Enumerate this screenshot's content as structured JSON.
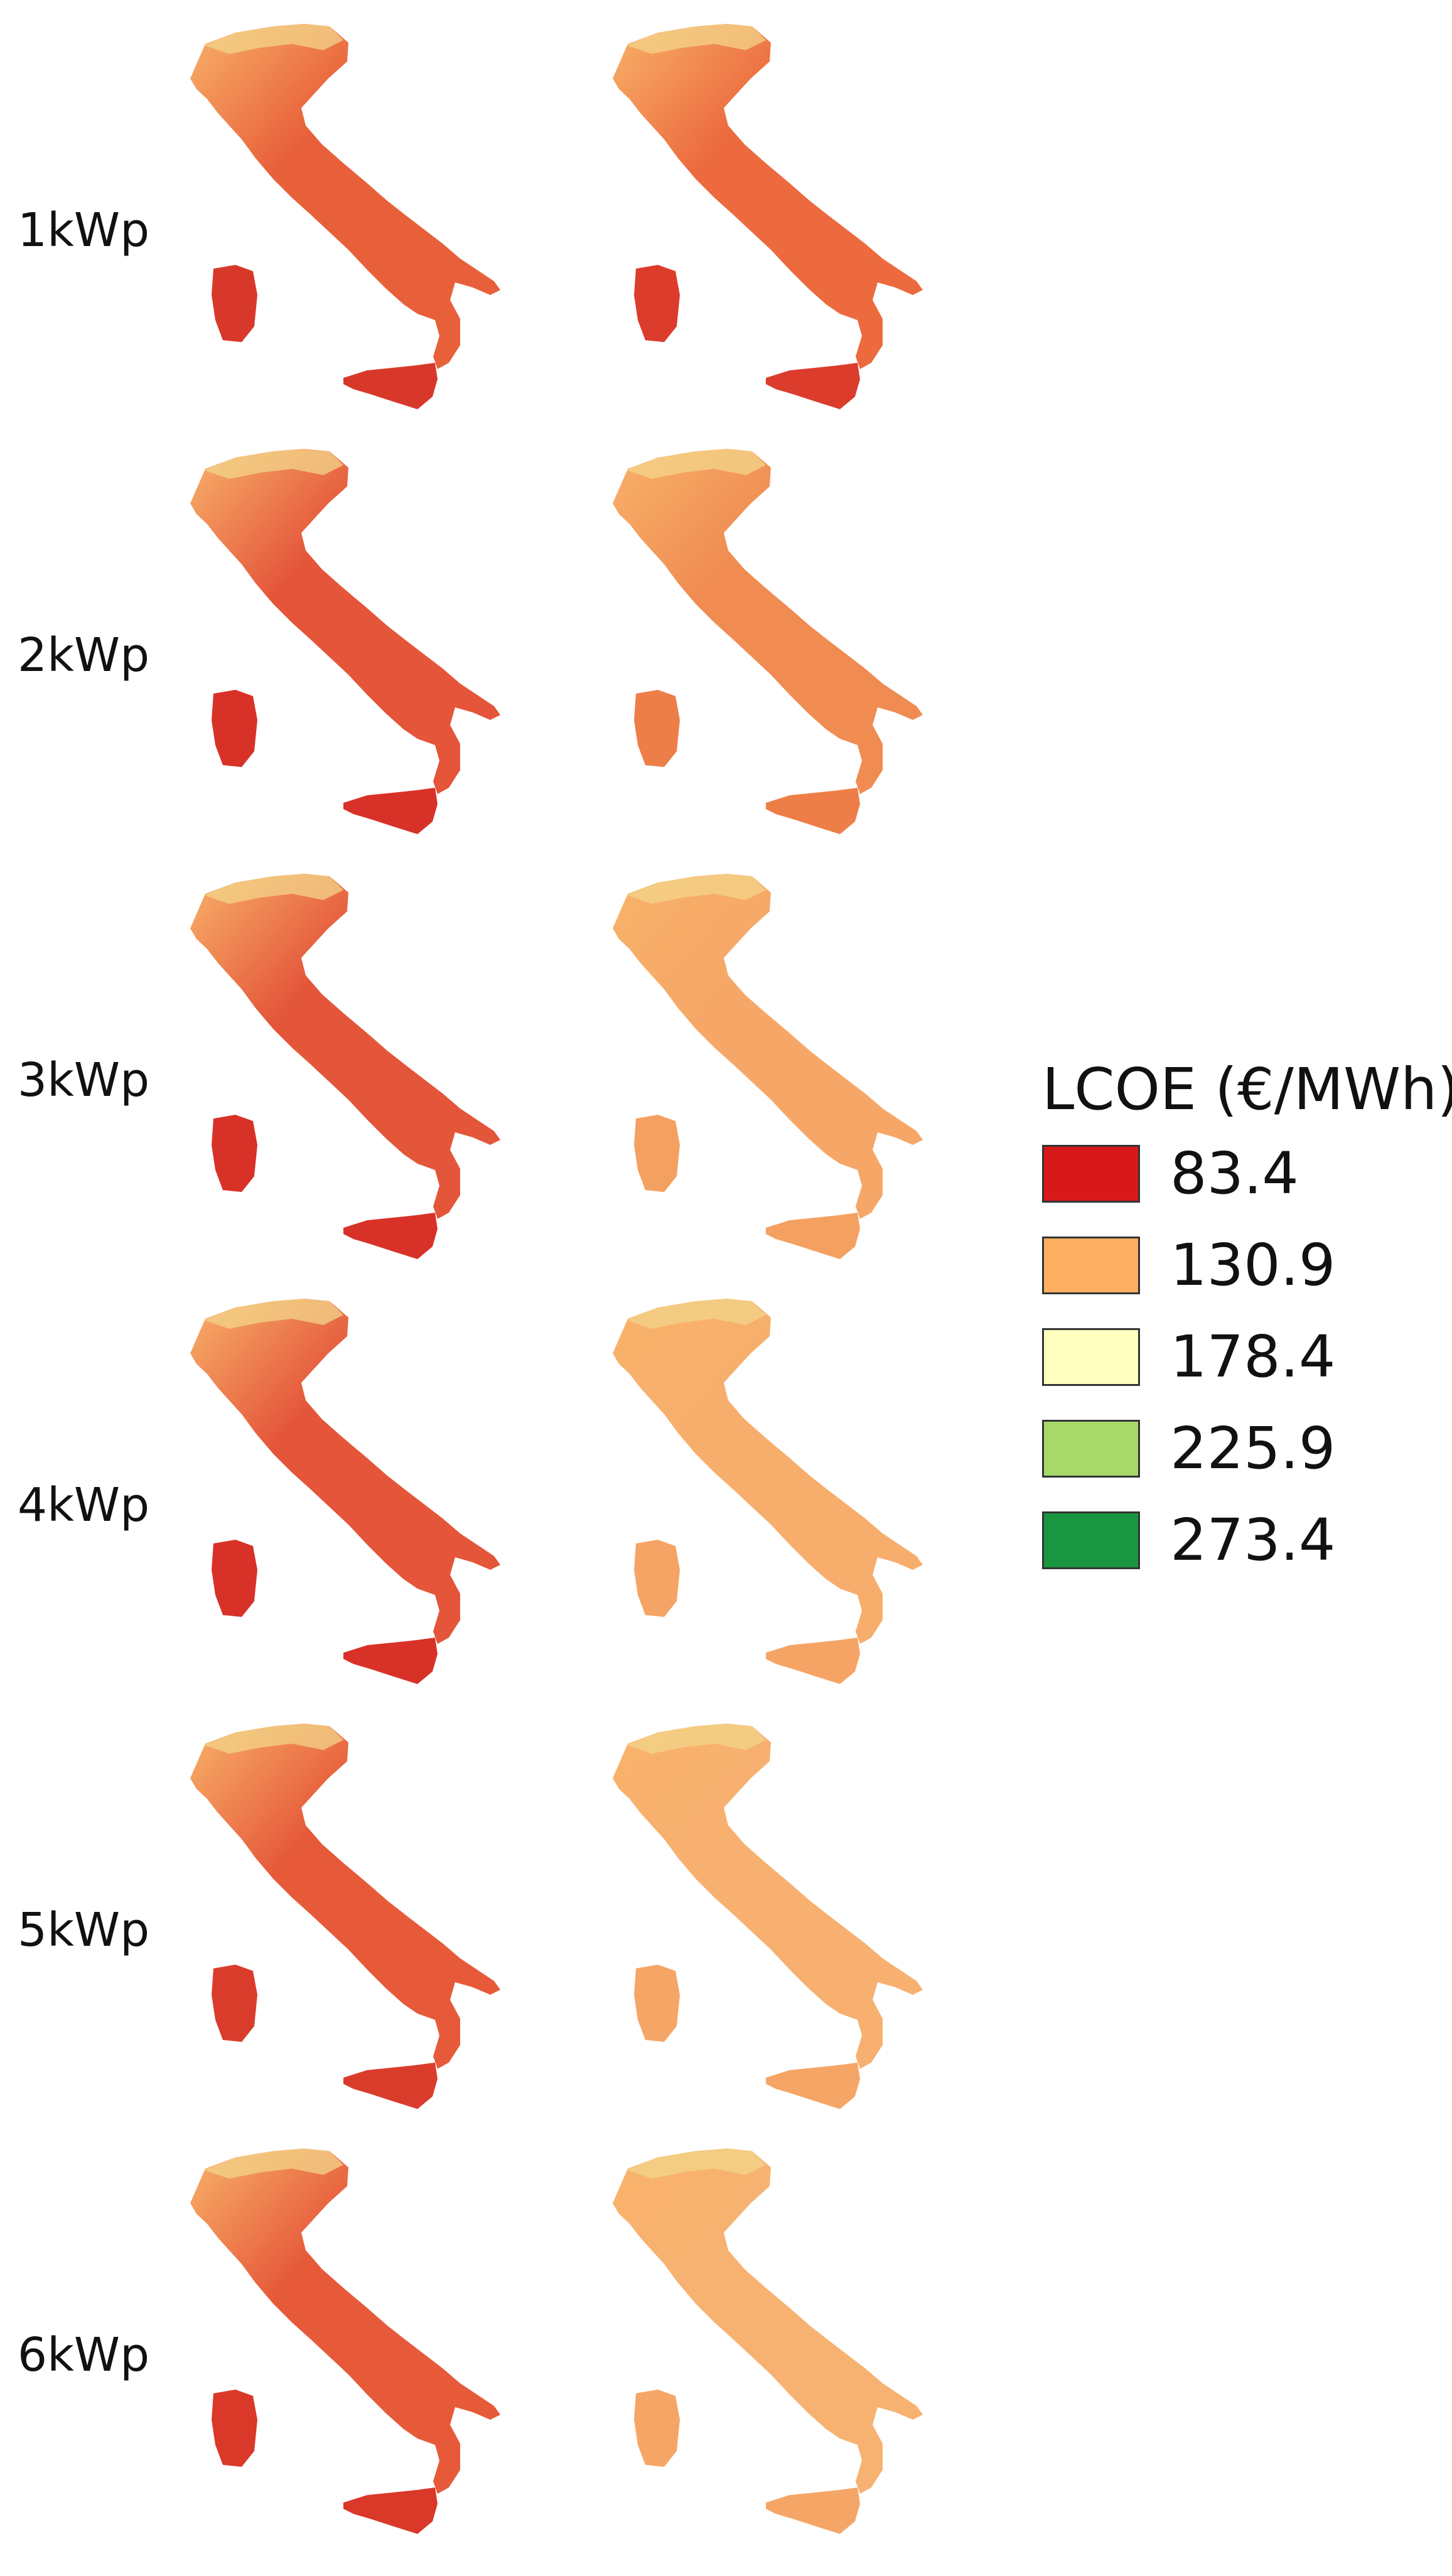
{
  "rows": [
    {
      "label": "1kWp",
      "left": {
        "fill": "#e8603a",
        "south": "#d8382a"
      },
      "right": {
        "fill": "#ec6a3e",
        "south": "#db3c2c"
      }
    },
    {
      "label": "2kWp",
      "left": {
        "fill": "#e4553a",
        "south": "#d83228"
      },
      "right": {
        "fill": "#f08c52",
        "south": "#ee7e48"
      }
    },
    {
      "label": "3kWp",
      "left": {
        "fill": "#e4563a",
        "south": "#d83228"
      },
      "right": {
        "fill": "#f6a767",
        "south": "#f4a061"
      }
    },
    {
      "label": "4kWp",
      "left": {
        "fill": "#e4553a",
        "south": "#d83228"
      },
      "right": {
        "fill": "#f7ae6d",
        "south": "#f5a465"
      }
    },
    {
      "label": "5kWp",
      "left": {
        "fill": "#e65a3a",
        "south": "#da3c2c"
      },
      "right": {
        "fill": "#f7b070",
        "south": "#f5a667"
      }
    },
    {
      "label": "6kWp",
      "left": {
        "fill": "#e65a3a",
        "south": "#da3828"
      },
      "right": {
        "fill": "#f7b272",
        "south": "#f5a667"
      }
    }
  ],
  "north_color": "#f8b26a",
  "alps_color": "#f3d48a",
  "legend": {
    "title": "LCOE (€/MWh)",
    "items": [
      {
        "value": "83.4",
        "color": "#d7191c"
      },
      {
        "value": "130.9",
        "color": "#fdae61"
      },
      {
        "value": "178.4",
        "color": "#ffffbf"
      },
      {
        "value": "225.9",
        "color": "#a6d96a"
      },
      {
        "value": "273.4",
        "color": "#1a9641"
      }
    ]
  }
}
